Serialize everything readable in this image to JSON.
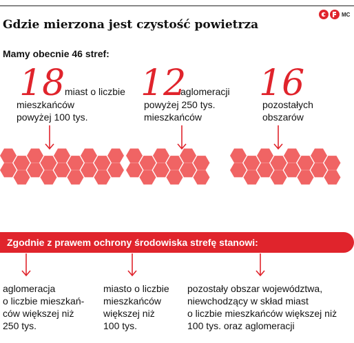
{
  "header": {
    "title": "Gdzie mierzona jest czystość powietrza",
    "logo_text": "MC"
  },
  "subtitle": "Mamy obecnie 46 stref:",
  "groups": [
    {
      "number": "18",
      "desc": [
        "miast o liczbie",
        "mieszkańców",
        "powyżej 100 tys."
      ],
      "hex_count": 18
    },
    {
      "number": "12",
      "desc": [
        "aglomeracji",
        "powyżej 250 tys.",
        "mieszkańców"
      ],
      "hex_count": 12
    },
    {
      "number": "16",
      "desc": [
        "pozostałych",
        "obszarów"
      ],
      "hex_count": 16
    }
  ],
  "banner": "Zgodnie z prawem ochrony środowiska strefę stanowi:",
  "definitions": [
    {
      "lines": [
        "aglomeracja",
        "o liczbie mieszkań-",
        "ców większej niż",
        "250 tys."
      ]
    },
    {
      "lines": [
        "miasto o liczbie",
        "mieszkańców",
        "większej niż",
        "100 tys."
      ]
    },
    {
      "lines": [
        "pozostały obszar województwa,",
        "niewchodzący w skład miast",
        "o liczbie mieszkańców większej niż",
        "100 tys. oraz aglomeracji"
      ]
    }
  ],
  "colors": {
    "accent": "#e0242c",
    "hex": "#f06464",
    "text": "#111111"
  }
}
